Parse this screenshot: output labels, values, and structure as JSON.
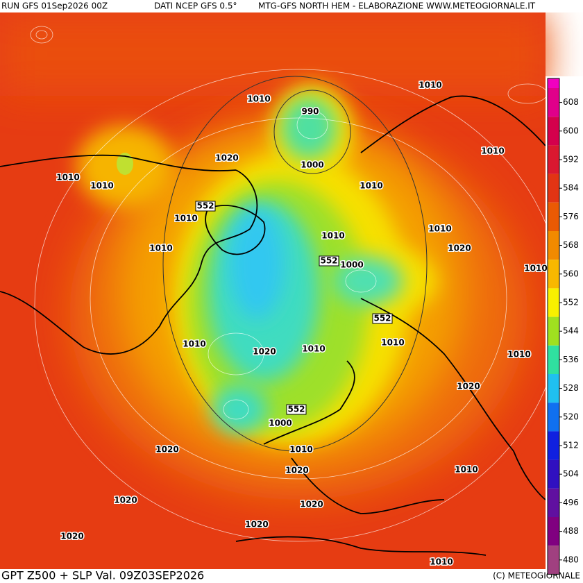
{
  "header": {
    "run": "RUN GFS 01Sep2026 00Z",
    "source": "DATI NCEP GFS 0.5°",
    "credit": "MTG-GFS NORTH HEM - ELABORAZIONE WWW.METEOGIORNALE.IT"
  },
  "footer": {
    "title": "GPT Z500 + SLP Val. 09Z03SEP2026",
    "copyright": "(C) METEOGIORNALE"
  },
  "color_scale": {
    "values": [
      608,
      600,
      592,
      584,
      576,
      568,
      560,
      552,
      544,
      536,
      528,
      520,
      512,
      504,
      496,
      488,
      480
    ],
    "colors": [
      "#e0008a",
      "#d4004c",
      "#da1830",
      "#e23414",
      "#ea5a04",
      "#f28a00",
      "#f8b800",
      "#f8f000",
      "#a0e020",
      "#30e0a0",
      "#20c0f0",
      "#1070f0",
      "#1020e0",
      "#3010c0",
      "#6010a0",
      "#800080",
      "#a04080"
    ]
  },
  "isobar_labels": [
    "1010",
    "1010",
    "990",
    "1020",
    "1010",
    "1010",
    "1000",
    "1010",
    "1010",
    "552",
    "1010",
    "1010",
    "1010",
    "552",
    "1000",
    "1010",
    "1020",
    "1010",
    "552",
    "1010",
    "1020",
    "1010",
    "1010",
    "1010",
    "1020",
    "552",
    "1000",
    "1010",
    "1020",
    "1020",
    "1010",
    "1020",
    "1020",
    "1020",
    "1020",
    "1010"
  ]
}
